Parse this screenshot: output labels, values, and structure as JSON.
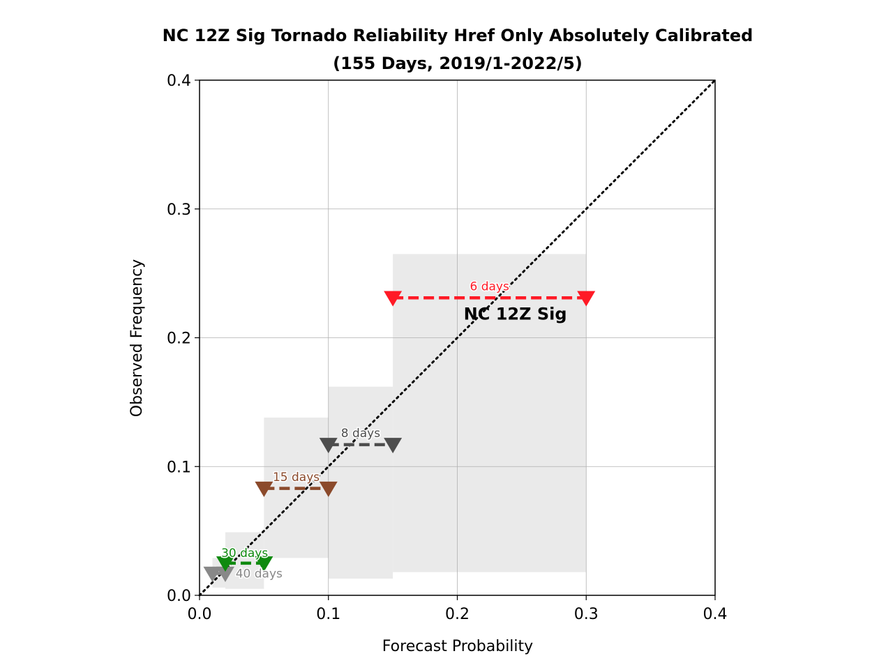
{
  "chart_data": {
    "type": "reliability",
    "title_line1": "NC 12Z Sig Tornado Reliability Href Only Absolutely Calibrated",
    "title_line2": "(155 Days, 2019/1-2022/5)",
    "xlabel": "Forecast Probability",
    "ylabel": "Observed Frequency",
    "xlim": [
      0.0,
      0.4
    ],
    "ylim": [
      0.0,
      0.4
    ],
    "x_ticks": [
      0.0,
      0.1,
      0.2,
      0.3,
      0.4
    ],
    "y_ticks": [
      0.0,
      0.1,
      0.2,
      0.3,
      0.4
    ],
    "x_tick_labels": [
      "0.0",
      "0.1",
      "0.2",
      "0.3",
      "0.4"
    ],
    "y_tick_labels": [
      "0.0",
      "0.1",
      "0.2",
      "0.3",
      "0.4"
    ],
    "grid": true,
    "diagonal": {
      "from": [
        0.0,
        0.0
      ],
      "to": [
        0.4,
        0.4
      ],
      "style": "dotted",
      "color": "#000000"
    },
    "annotation": "NC 12Z Sig",
    "annotation_pos": [
      0.245,
      0.214
    ],
    "bins": [
      {
        "label": "40 days",
        "color": "#888888",
        "x_lo": 0.01,
        "x_hi": 0.02,
        "y": 0.017,
        "band_x": [
          0.01,
          0.02
        ],
        "band_y": [
          0.006,
          0.029
        ],
        "label_x": 0.028,
        "label_y": 0.017
      },
      {
        "label": "30 days",
        "color": "#0f8a0f",
        "x_lo": 0.02,
        "x_hi": 0.05,
        "y": 0.025,
        "band_x": [
          0.02,
          0.05
        ],
        "band_y": [
          0.005,
          0.049
        ],
        "label_x": 0.035,
        "label_y": 0.033
      },
      {
        "label": "15 days",
        "color": "#8b4a2b",
        "x_lo": 0.05,
        "x_hi": 0.1,
        "y": 0.083,
        "band_x": [
          0.05,
          0.1
        ],
        "band_y": [
          0.029,
          0.138
        ],
        "label_x": 0.075,
        "label_y": 0.092
      },
      {
        "label": "8 days",
        "color": "#4d4d4d",
        "x_lo": 0.1,
        "x_hi": 0.15,
        "y": 0.117,
        "band_x": [
          0.1,
          0.15
        ],
        "band_y": [
          0.013,
          0.162
        ],
        "label_x": 0.125,
        "label_y": 0.126
      },
      {
        "label": "6 days",
        "color": "#ff1a26",
        "x_lo": 0.15,
        "x_hi": 0.3,
        "y": 0.231,
        "band_x": [
          0.15,
          0.3
        ],
        "band_y": [
          0.018,
          0.265
        ],
        "label_x": 0.225,
        "label_y": 0.24
      }
    ]
  }
}
